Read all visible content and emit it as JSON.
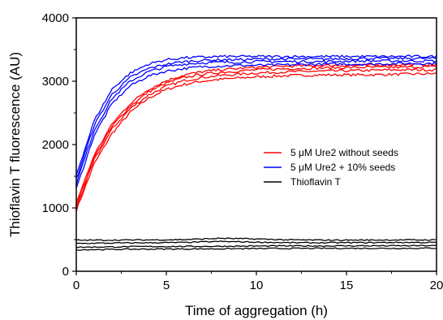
{
  "chart_data": {
    "type": "line",
    "title": "",
    "xlabel": "Time of aggregation (h)",
    "ylabel": "Thioflavin T fluorescence (AU)",
    "xlim": [
      0,
      20
    ],
    "ylim": [
      0,
      4000
    ],
    "xticks": [
      0,
      5,
      10,
      15,
      20
    ],
    "yticks": [
      0,
      1000,
      2000,
      3000,
      4000
    ],
    "grid": false,
    "legend_position": "center-right",
    "series": [
      {
        "name": "5 μM Ure2 without seeds",
        "color": "#ff0000",
        "replicates": [
          {
            "x": [
              0,
              1,
              2,
              3,
              4,
              5,
              6,
              7,
              8,
              9,
              10,
              12,
              14,
              16,
              18,
              20
            ],
            "y": [
              960,
              1700,
              2180,
              2510,
              2730,
              2870,
              2950,
              3000,
              3030,
              3050,
              3070,
              3090,
              3100,
              3100,
              3110,
              3120
            ]
          },
          {
            "x": [
              0,
              1,
              2,
              3,
              4,
              5,
              6,
              7,
              8,
              9,
              10,
              12,
              14,
              16,
              18,
              20
            ],
            "y": [
              1000,
              1760,
              2250,
              2570,
              2780,
              2920,
              3010,
              3060,
              3090,
              3110,
              3130,
              3150,
              3160,
              3170,
              3180,
              3180
            ]
          },
          {
            "x": [
              0,
              1,
              2,
              3,
              4,
              5,
              6,
              7,
              8,
              9,
              10,
              12,
              14,
              16,
              18,
              20
            ],
            "y": [
              1040,
              1800,
              2290,
              2610,
              2830,
              2970,
              3060,
              3110,
              3140,
              3160,
              3180,
              3200,
              3210,
              3220,
              3220,
              3230
            ]
          },
          {
            "x": [
              0,
              1,
              2,
              3,
              4,
              5,
              6,
              7,
              8,
              9,
              10,
              12,
              14,
              16,
              18,
              20
            ],
            "y": [
              1080,
              1840,
              2330,
              2650,
              2870,
              3010,
              3100,
              3150,
              3180,
              3200,
              3220,
              3240,
              3250,
              3250,
              3260,
              3260
            ]
          }
        ]
      },
      {
        "name": "5 μM Ure2 + 10% seeds",
        "color": "#0000ff",
        "replicates": [
          {
            "x": [
              0,
              1,
              2,
              3,
              4,
              5,
              6,
              7,
              8,
              9,
              10,
              12,
              14,
              16,
              18,
              20
            ],
            "y": [
              1300,
              2150,
              2650,
              2930,
              3080,
              3160,
              3200,
              3230,
              3240,
              3250,
              3250,
              3260,
              3270,
              3270,
              3280,
              3280
            ]
          },
          {
            "x": [
              0,
              1,
              2,
              3,
              4,
              5,
              6,
              7,
              8,
              9,
              10,
              12,
              14,
              16,
              18,
              20
            ],
            "y": [
              1380,
              2230,
              2730,
              3000,
              3150,
              3230,
              3270,
              3290,
              3300,
              3300,
              3310,
              3310,
              3310,
              3320,
              3320,
              3320
            ]
          },
          {
            "x": [
              0,
              1,
              2,
              3,
              4,
              5,
              6,
              7,
              8,
              9,
              10,
              12,
              14,
              16,
              18,
              20
            ],
            "y": [
              1450,
              2310,
              2800,
              3060,
              3200,
              3270,
              3310,
              3330,
              3340,
              3340,
              3350,
              3350,
              3350,
              3360,
              3360,
              3360
            ]
          },
          {
            "x": [
              0,
              1,
              2,
              3,
              4,
              5,
              6,
              7,
              8,
              9,
              10,
              12,
              14,
              16,
              18,
              20
            ],
            "y": [
              1520,
              2380,
              2880,
              3130,
              3270,
              3340,
              3370,
              3380,
              3390,
              3390,
              3390,
              3390,
              3390,
              3390,
              3390,
              3390
            ]
          }
        ]
      },
      {
        "name": "Thioflavin T",
        "color": "#000000",
        "replicates": [
          {
            "x": [
              0,
              2,
              4,
              6,
              8,
              10,
              12,
              14,
              16,
              18,
              20
            ],
            "y": [
              340,
              345,
              350,
              352,
              355,
              358,
              360,
              362,
              362,
              362,
              365
            ]
          },
          {
            "x": [
              0,
              2,
              4,
              6,
              8,
              10,
              12,
              14,
              16,
              18,
              20
            ],
            "y": [
              380,
              385,
              390,
              392,
              395,
              398,
              400,
              400,
              402,
              402,
              405
            ]
          },
          {
            "x": [
              0,
              2,
              4,
              6,
              8,
              10,
              12,
              14,
              16,
              18,
              20
            ],
            "y": [
              440,
              445,
              450,
              455,
              470,
              460,
              450,
              450,
              452,
              455,
              455
            ]
          },
          {
            "x": [
              0,
              2,
              4,
              6,
              8,
              10,
              12,
              14,
              16,
              18,
              20
            ],
            "y": [
              490,
              492,
              495,
              500,
              520,
              510,
              495,
              492,
              492,
              495,
              495
            ]
          }
        ]
      }
    ]
  }
}
